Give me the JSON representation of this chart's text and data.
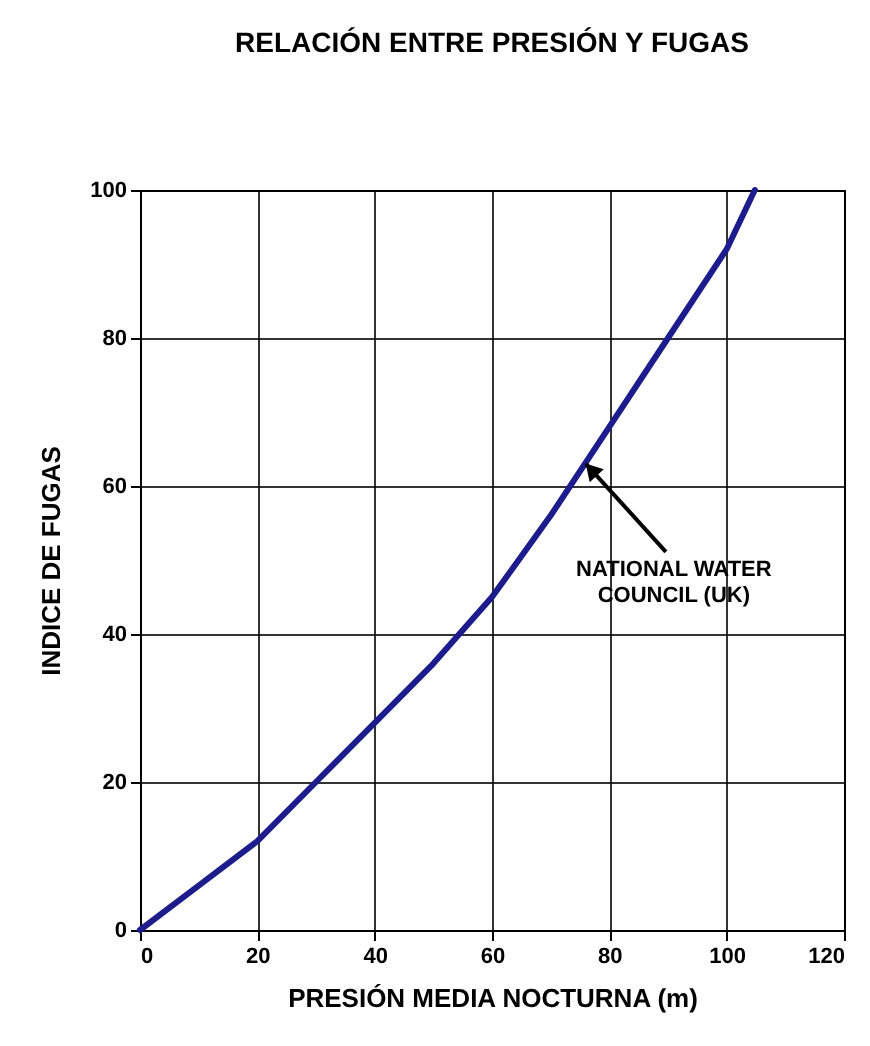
{
  "chart_data": {
    "type": "line",
    "title": "RELACIÓN ENTRE PRESIÓN Y FUGAS",
    "xlabel": "PRESIÓN MEDIA NOCTURNA (m)",
    "ylabel": "INDICE DE FUGAS",
    "x": [
      0,
      10,
      20,
      30,
      40,
      50,
      60,
      70,
      80,
      90,
      100,
      104.8
    ],
    "series": [
      {
        "color": "#1c1c8c",
        "values": [
          0,
          6,
          12,
          20,
          28,
          36,
          45,
          56,
          68,
          80,
          92,
          100
        ]
      }
    ],
    "xlim": [
      0,
      120
    ],
    "xticks": [
      0,
      20,
      40,
      60,
      80,
      100,
      120
    ],
    "ylim": [
      0,
      100
    ],
    "yticks": [
      0,
      20,
      40,
      60,
      80,
      100
    ],
    "grid": true,
    "marker": "none",
    "line_style": "solid",
    "annotations": [
      {
        "text": "NATIONAL WATER COUNCIL (UK)",
        "x": 76,
        "y": 63
      }
    ]
  }
}
